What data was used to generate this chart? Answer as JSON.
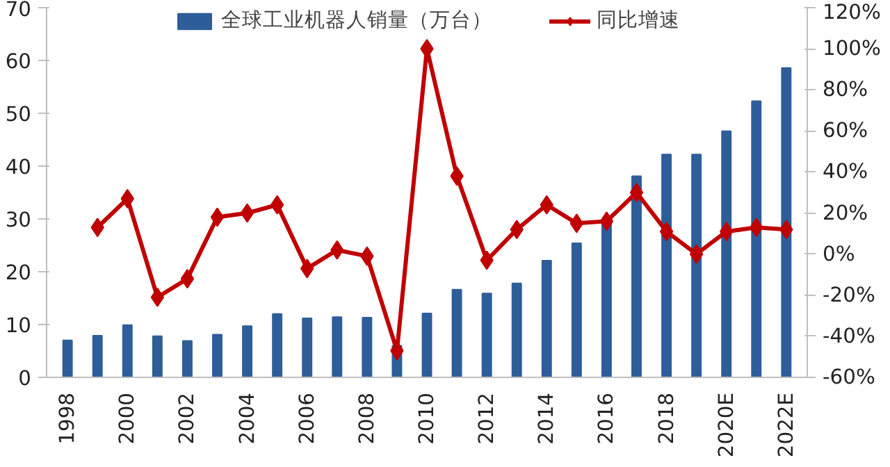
{
  "chart_data": {
    "type": "bar",
    "categories": [
      "1998",
      null,
      "2000",
      null,
      "2002",
      null,
      "2004",
      null,
      "2006",
      null,
      "2008",
      null,
      "2010",
      null,
      "2012",
      null,
      "2014",
      null,
      "2016",
      null,
      "2018",
      null,
      "2020E",
      null,
      "2022E"
    ],
    "series": [
      {
        "name": "全球工业机器人销量（万台）",
        "color": "#2e5e99",
        "values": [
          7,
          7.9,
          9.9,
          7.8,
          6.9,
          8.1,
          9.7,
          12,
          11.2,
          11.4,
          11.3,
          6,
          12.1,
          16.6,
          15.9,
          17.8,
          22.1,
          25.4,
          29.4,
          38.1,
          42.2,
          42.2,
          46.6,
          52.3,
          58.6
        ]
      },
      {
        "name": "同比增速",
        "type": "line",
        "axis": "y2",
        "color": "#c00000",
        "marker": "diamond",
        "values": [
          null,
          13,
          27,
          -21,
          -12,
          18,
          20,
          24,
          -7,
          2,
          -1,
          -47,
          100,
          38,
          -3,
          12,
          24,
          15,
          16,
          30,
          11,
          0,
          11,
          13,
          12
        ]
      }
    ],
    "ylim": [
      0,
      70
    ],
    "yticks": [
      0,
      10,
      20,
      30,
      40,
      50,
      60,
      70
    ],
    "y2lim": [
      -60,
      120
    ],
    "y2ticks": [
      {
        "value": -60,
        "label": "-60%"
      },
      {
        "value": -40,
        "label": "-40%"
      },
      {
        "value": -20,
        "label": "-20%"
      },
      {
        "value": 0,
        "label": "0%"
      },
      {
        "value": 20,
        "label": "20%"
      },
      {
        "value": 40,
        "label": "40%"
      },
      {
        "value": 60,
        "label": "60%"
      },
      {
        "value": 80,
        "label": "80%"
      },
      {
        "value": 100,
        "label": "100%"
      },
      {
        "value": 120,
        "label": "120%"
      }
    ],
    "legend": "top",
    "grid": false
  }
}
